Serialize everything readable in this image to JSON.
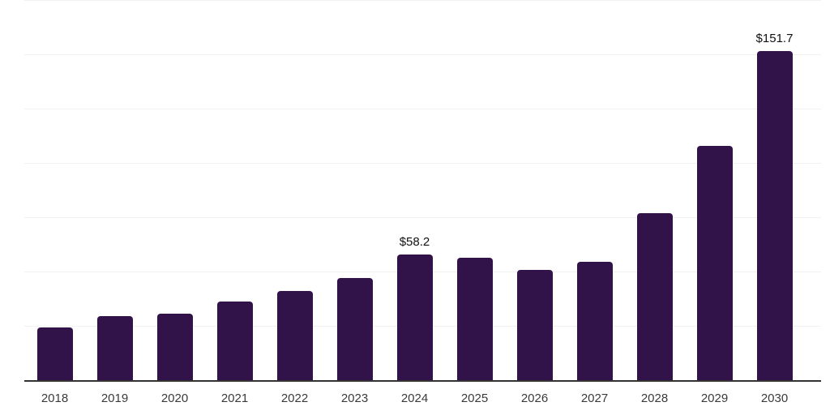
{
  "chart_data": {
    "type": "bar",
    "title": "",
    "xlabel": "",
    "ylabel": "",
    "categories": [
      "2018",
      "2019",
      "2020",
      "2021",
      "2022",
      "2023",
      "2024",
      "2025",
      "2026",
      "2027",
      "2028",
      "2029",
      "2030"
    ],
    "values": [
      24.5,
      29.8,
      31.0,
      36.5,
      41.4,
      47.3,
      58.2,
      56.7,
      51.0,
      55.0,
      77.4,
      108.3,
      151.7
    ],
    "data_labels": {
      "2024": "$58.2",
      "2030": "$151.7"
    },
    "ylim": [
      0,
      175
    ],
    "grid_step": 25,
    "grid_on": true,
    "legend_position": "none",
    "y_axis_tick_labels_visible": false
  },
  "colors": {
    "bar": "#321349",
    "axis_line": "#333333",
    "gridline": "#f1f1f1",
    "data_label": "#111111",
    "tick_label": "#3a3a3a",
    "background": "#ffffff"
  }
}
